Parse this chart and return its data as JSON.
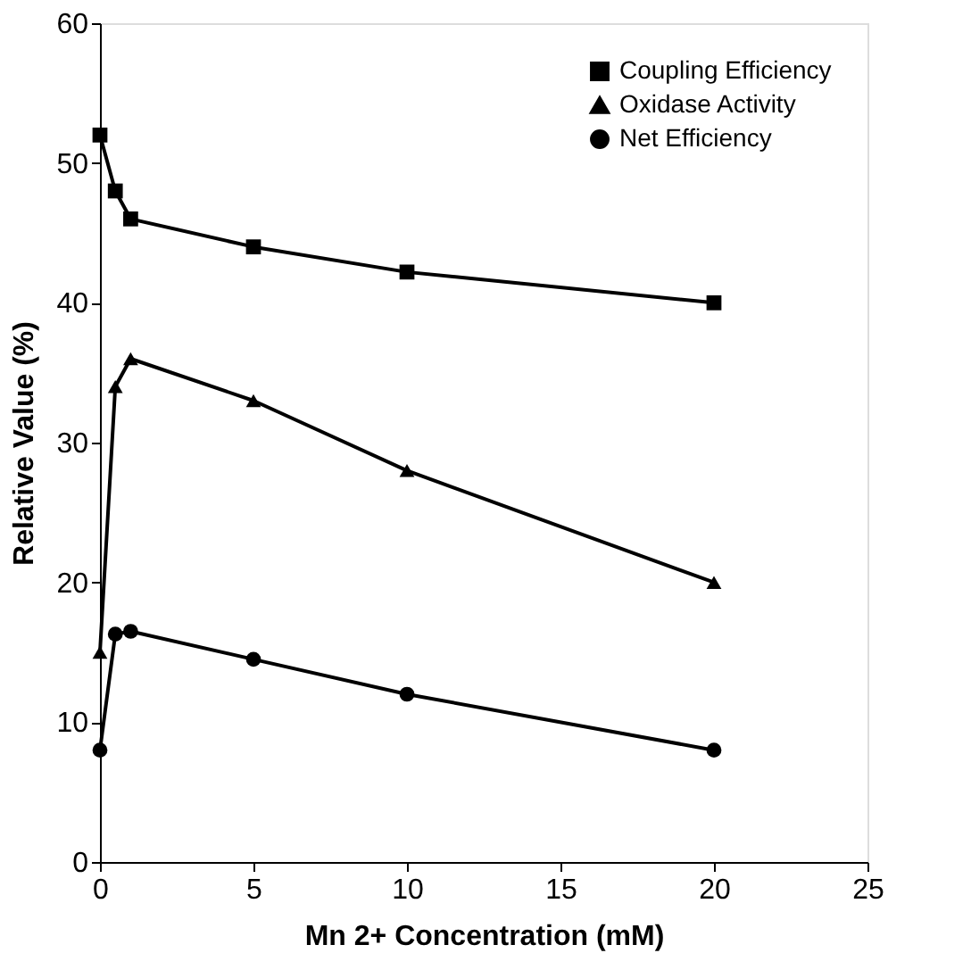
{
  "chart_data": {
    "type": "line",
    "xlabel": "Mn 2+ Concentration (mM)",
    "ylabel": "Relative Value (%)",
    "x": [
      0,
      0.5,
      1,
      5,
      10,
      20
    ],
    "xlim": [
      0,
      25
    ],
    "xticks": [
      0,
      5,
      10,
      15,
      20,
      25
    ],
    "ylim": [
      0,
      60
    ],
    "yticks": [
      0,
      10,
      20,
      30,
      40,
      50,
      60
    ],
    "grid": false,
    "legend": "top right",
    "line_style": "solid",
    "series": [
      {
        "name": "Coupling Efficiency",
        "color": "#000000",
        "marker": "square",
        "values": [
          52,
          48,
          46,
          44,
          42.2,
          40
        ]
      },
      {
        "name": "Oxidase Activity",
        "color": "#000000",
        "marker": "triangle",
        "values": [
          15,
          34,
          36,
          33,
          28,
          20
        ]
      },
      {
        "name": "Net Efficiency",
        "color": "#000000",
        "marker": "circle",
        "values": [
          8,
          16.3,
          16.5,
          14.5,
          12,
          8
        ]
      }
    ]
  }
}
